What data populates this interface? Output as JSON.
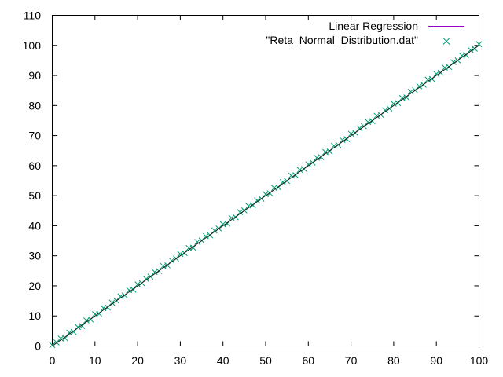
{
  "chart_data": {
    "type": "scatter",
    "title": "",
    "xlabel": "",
    "ylabel": "",
    "xlim": [
      0,
      100
    ],
    "ylim": [
      0,
      110
    ],
    "xticks": [
      0,
      10,
      20,
      30,
      40,
      50,
      60,
      70,
      80,
      90,
      100
    ],
    "yticks": [
      0,
      10,
      20,
      30,
      40,
      50,
      60,
      70,
      80,
      90,
      100,
      110
    ],
    "grid": false,
    "legend_position": "top-right",
    "series": [
      {
        "name": "Linear Regression",
        "kind": "line",
        "color": "#9400d3",
        "draw_color": "#1a1a1a",
        "x": [
          0,
          100
        ],
        "y": [
          0,
          100
        ]
      },
      {
        "name": "\"Reta_Normal_Distribution.dat\"",
        "kind": "points",
        "marker": "x",
        "color": "#009e73",
        "x": [
          0,
          1,
          2,
          3,
          4,
          5,
          6,
          7,
          8,
          9,
          10,
          11,
          12,
          13,
          14,
          15,
          16,
          17,
          18,
          19,
          20,
          21,
          22,
          23,
          24,
          25,
          26,
          27,
          28,
          29,
          30,
          31,
          32,
          33,
          34,
          35,
          36,
          37,
          38,
          39,
          40,
          41,
          42,
          43,
          44,
          45,
          46,
          47,
          48,
          49,
          50,
          51,
          52,
          53,
          54,
          55,
          56,
          57,
          58,
          59,
          60,
          61,
          62,
          63,
          64,
          65,
          66,
          67,
          68,
          69,
          70,
          71,
          72,
          73,
          74,
          75,
          76,
          77,
          78,
          79,
          80,
          81,
          82,
          83,
          84,
          85,
          86,
          87,
          88,
          89,
          90,
          91,
          92,
          93,
          94,
          95,
          96,
          97,
          98,
          99,
          100
        ],
        "y": [
          0.3,
          1.2,
          2.5,
          2.6,
          4.4,
          4.7,
          6.3,
          6.6,
          8.5,
          8.8,
          10.6,
          10.7,
          12.6,
          12.8,
          14.4,
          15.1,
          16.5,
          16.8,
          18.6,
          18.7,
          20.5,
          20.9,
          22.3,
          23.1,
          24.6,
          24.9,
          26.6,
          26.8,
          28.4,
          29.1,
          30.6,
          30.9,
          32.6,
          32.7,
          34.6,
          35.1,
          36.5,
          36.8,
          38.4,
          39.1,
          40.5,
          40.7,
          42.6,
          42.8,
          44.5,
          45.1,
          46.6,
          46.8,
          48.4,
          49.0,
          50.5,
          50.8,
          52.6,
          52.7,
          54.5,
          54.9,
          56.7,
          56.8,
          58.6,
          58.9,
          60.4,
          61.0,
          62.6,
          62.8,
          64.5,
          64.7,
          66.6,
          66.9,
          68.5,
          68.8,
          70.6,
          70.9,
          72.4,
          73.1,
          74.5,
          74.8,
          76.6,
          76.9,
          78.4,
          79.0,
          80.6,
          80.8,
          82.5,
          82.7,
          84.6,
          85.1,
          86.4,
          86.9,
          88.6,
          88.8,
          90.5,
          90.9,
          92.6,
          92.8,
          94.4,
          95.0,
          96.6,
          96.8,
          98.5,
          98.9,
          100.4
        ]
      }
    ]
  }
}
